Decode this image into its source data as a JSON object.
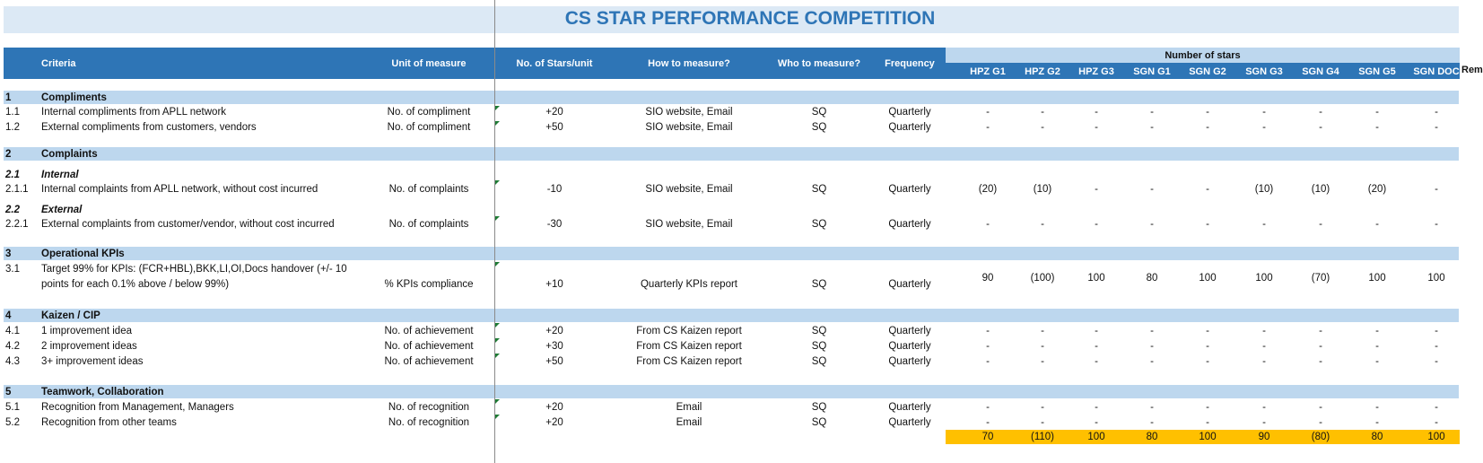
{
  "title": "CS STAR PERFORMANCE COMPETITION",
  "headers": {
    "criteria": "Criteria",
    "unit": "Unit of measure",
    "stars_unit": "No. of Stars/unit",
    "how": "How to measure?",
    "who": "Who to measure?",
    "frequency": "Frequency",
    "number_of_stars": "Number of stars",
    "remarks": "Rem",
    "teams": [
      "HPZ G1",
      "HPZ G2",
      "HPZ G3",
      "SGN G1",
      "SGN G2",
      "SGN G3",
      "SGN G4",
      "SGN G5",
      "SGN DOC"
    ]
  },
  "sections": [
    {
      "num": "1",
      "label": "Compliments"
    },
    {
      "num": "2",
      "label": "Complaints"
    },
    {
      "num": "3",
      "label": "Operational KPIs"
    },
    {
      "num": "4",
      "label": "Kaizen / CIP"
    },
    {
      "num": "5",
      "label": "Teamwork, Collaboration"
    }
  ],
  "subsections": [
    {
      "num": "2.1",
      "label": "Internal"
    },
    {
      "num": "2.2",
      "label": "External"
    }
  ],
  "rows": [
    {
      "num": "1.1",
      "criteria": "Internal compliments from APLL network",
      "unit": "No. of compliment",
      "stars": "+20",
      "how": "SIO website, Email",
      "who": "SQ",
      "freq": "Quarterly",
      "values": [
        "-",
        "-",
        "-",
        "-",
        "-",
        "-",
        "-",
        "-",
        "-"
      ]
    },
    {
      "num": "1.2",
      "criteria": "External compliments from customers, vendors",
      "unit": "No. of compliment",
      "stars": "+50",
      "how": "SIO website, Email",
      "who": "SQ",
      "freq": "Quarterly",
      "values": [
        "-",
        "-",
        "-",
        "-",
        "-",
        "-",
        "-",
        "-",
        "-"
      ]
    },
    {
      "num": "2.1.1",
      "criteria": "Internal complaints from APLL network, without cost incurred",
      "unit": "No. of complaints",
      "stars": "-10",
      "how": "SIO website, Email",
      "who": "SQ",
      "freq": "Quarterly",
      "values": [
        "(20)",
        "(10)",
        "-",
        "-",
        "-",
        "(10)",
        "(10)",
        "(20)",
        "-"
      ]
    },
    {
      "num": "2.2.1",
      "criteria": "External complaints from customer/vendor, without cost incurred",
      "unit": "No. of complaints",
      "stars": "-30",
      "how": "SIO website, Email",
      "who": "SQ",
      "freq": "Quarterly",
      "values": [
        "-",
        "-",
        "-",
        "-",
        "-",
        "-",
        "-",
        "-",
        "-"
      ]
    },
    {
      "num": "3.1",
      "criteria": "Target 99% for KPIs: (FCR+HBL),BKK,LI,OI,Docs handover (+/- 10",
      "criteria2": "points for each 0.1% above / below 99%)",
      "unit": "% KPIs compliance",
      "stars": "+10",
      "how": "Quarterly KPIs report",
      "who": "SQ",
      "freq": "Quarterly",
      "values": [
        "90",
        "(100)",
        "100",
        "80",
        "100",
        "100",
        "(70)",
        "100",
        "100"
      ]
    },
    {
      "num": "4.1",
      "criteria": "1 improvement idea",
      "unit": "No. of achievement",
      "stars": "+20",
      "how": "From CS Kaizen report",
      "who": "SQ",
      "freq": "Quarterly",
      "values": [
        "-",
        "-",
        "-",
        "-",
        "-",
        "-",
        "-",
        "-",
        "-"
      ]
    },
    {
      "num": "4.2",
      "criteria": "2 improvement ideas",
      "unit": "No. of achievement",
      "stars": "+30",
      "how": "From CS Kaizen report",
      "who": "SQ",
      "freq": "Quarterly",
      "values": [
        "-",
        "-",
        "-",
        "-",
        "-",
        "-",
        "-",
        "-",
        "-"
      ]
    },
    {
      "num": "4.3",
      "criteria": "3+ improvement ideas",
      "unit": "No. of achievement",
      "stars": "+50",
      "how": "From CS Kaizen report",
      "who": "SQ",
      "freq": "Quarterly",
      "values": [
        "-",
        "-",
        "-",
        "-",
        "-",
        "-",
        "-",
        "-",
        "-"
      ]
    },
    {
      "num": "5.1",
      "criteria": "Recognition from Management, Managers",
      "unit": "No. of recognition",
      "stars": "+20",
      "how": "Email",
      "who": "SQ",
      "freq": "Quarterly",
      "values": [
        "-",
        "-",
        "-",
        "-",
        "-",
        "-",
        "-",
        "-",
        "-"
      ]
    },
    {
      "num": "5.2",
      "criteria": "Recognition from other teams",
      "unit": "No. of recognition",
      "stars": "+20",
      "how": "Email",
      "who": "SQ",
      "freq": "Quarterly",
      "values": [
        "-",
        "-",
        "-",
        "-",
        "-",
        "-",
        "-",
        "-",
        "-"
      ]
    }
  ],
  "totals": [
    "70",
    "(110)",
    "100",
    "80",
    "100",
    "90",
    "(80)",
    "80",
    "100"
  ],
  "colors": {
    "header_blue": "#2e75b6",
    "section_blue": "#bdd7ee",
    "title_band": "#dce9f5",
    "total_yellow": "#ffc000"
  }
}
